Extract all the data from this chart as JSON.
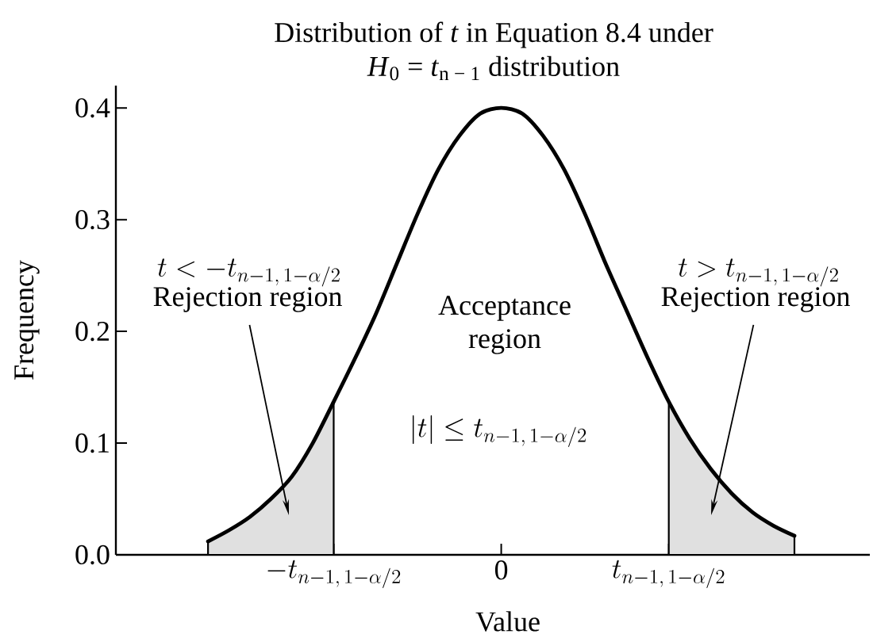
{
  "chart_data": {
    "type": "line",
    "title": "Distribution of *t* in Equation 8.4 under",
    "subtitle": "*H*$_{0}$ = *t*$_{n − 1}$ distribution",
    "xlabel": "Value",
    "ylabel": "Frequency",
    "categories": [
      null,
      null,
      null,
      null,
      null,
      null,
      "-t_{n-1,\\,1-\\alpha/2}",
      null,
      null,
      null,
      null,
      null,
      null,
      null,
      "0",
      null,
      null,
      null,
      null,
      null,
      null,
      null,
      "t_{n-1,\\,1-\\alpha/2}",
      null,
      null,
      null,
      null,
      null,
      null
    ],
    "ylim": [
      0,
      0.42
    ],
    "yticks": [
      {
        "value": 0,
        "label": "0.0"
      },
      0.1,
      0.2,
      0.3,
      0.4
    ],
    "series": [
      {
        "color": "#000000",
        "values": [
          0.012,
          0.022,
          0.034,
          0.05,
          0.07,
          0.1,
          0.137,
          0.175,
          0.215,
          0.26,
          0.305,
          0.345,
          0.375,
          0.395,
          0.4,
          0.395,
          0.375,
          0.345,
          0.305,
          0.26,
          0.218,
          0.176,
          0.137,
          0.104,
          0.077,
          0.055,
          0.038,
          0.026,
          0.017
        ]
      },
      {
        "type": "area",
        "color": "#e0e0e0",
        "values": [
          0.012,
          0.022,
          0.034,
          0.05,
          0.07,
          0.1,
          0.137,
          null,
          null,
          null,
          null,
          null,
          null,
          null,
          null,
          null,
          null,
          null,
          null,
          null,
          null,
          null,
          null,
          null,
          null,
          null,
          null,
          null,
          null
        ]
      },
      {
        "type": "area",
        "color": "#e0e0e0",
        "values": [
          null,
          null,
          null,
          null,
          null,
          null,
          null,
          null,
          null,
          null,
          null,
          null,
          null,
          null,
          null,
          null,
          null,
          null,
          null,
          null,
          null,
          null,
          0.137,
          0.104,
          0.077,
          0.055,
          0.038,
          0.026,
          0.017
        ]
      }
    ],
    "annotations": [
      "t < -t_{n-1,\\,1-\\alpha/2}",
      "Rejection region",
      "Acceptance region",
      "|t| \\le t_{n-1,\\,1-\\alpha/2}",
      "t > t_{n-1,\\,1-\\alpha/2}",
      "Rejection region"
    ]
  }
}
